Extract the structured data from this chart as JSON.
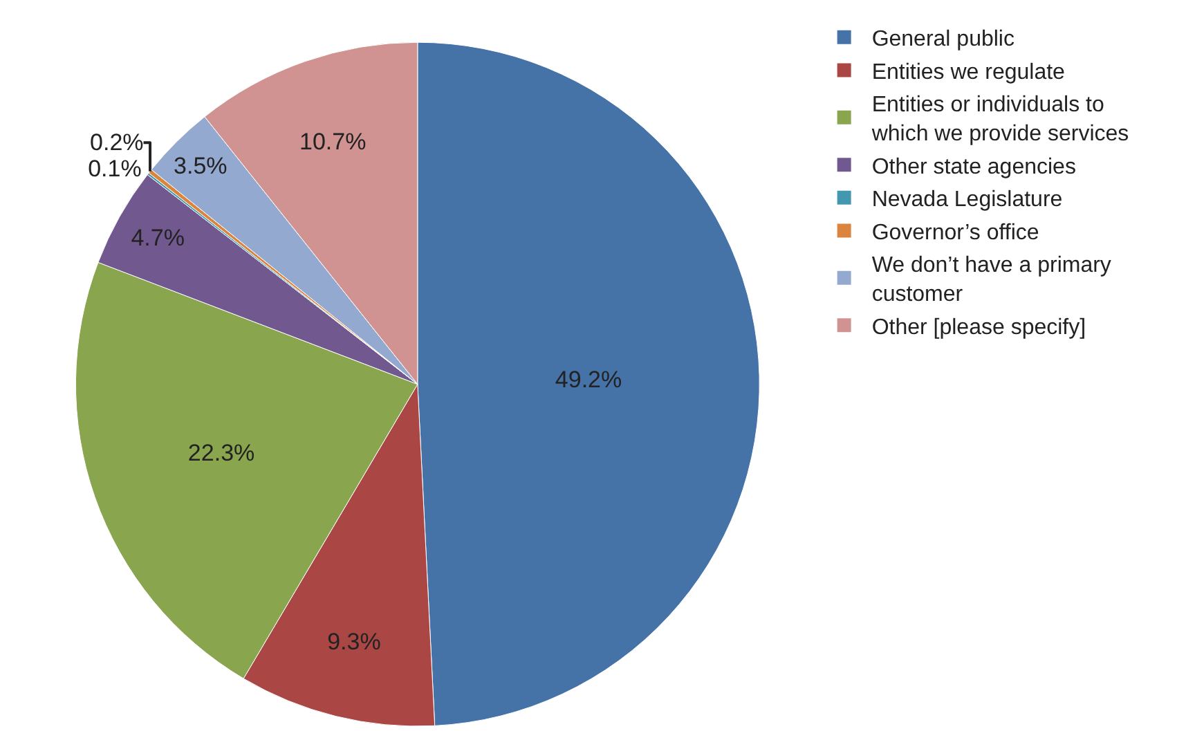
{
  "chart_data": {
    "type": "pie",
    "categories": [
      "General public",
      "Entities we regulate",
      "Entities or individuals to which we provide services",
      "Other state agencies",
      "Nevada Legislature",
      "Governor’s office",
      "We don’t have a primary customer",
      "Other [please specify]"
    ],
    "values": [
      49.2,
      9.3,
      22.3,
      4.7,
      0.1,
      0.2,
      3.5,
      10.7
    ],
    "value_labels": [
      "49.2%",
      "9.3%",
      "22.3%",
      "4.7%",
      "0.1%",
      "0.2%",
      "3.5%",
      "10.7%"
    ],
    "colors": [
      "#4572a7",
      "#aa4643",
      "#89a54e",
      "#71588f",
      "#4198af",
      "#db843d",
      "#93a9cf",
      "#d19392"
    ],
    "legend": "right"
  }
}
